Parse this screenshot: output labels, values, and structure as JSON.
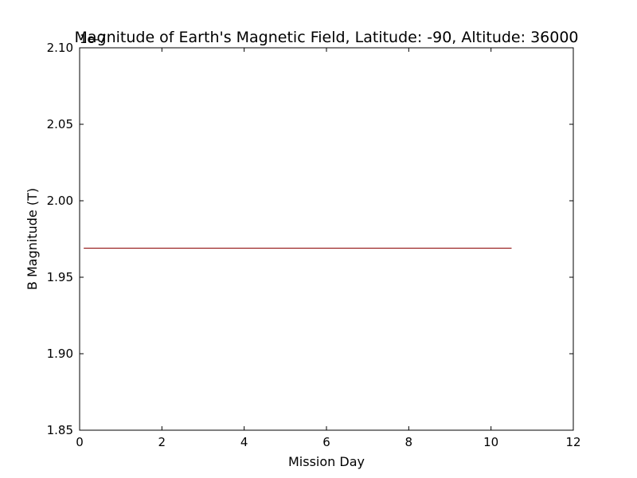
{
  "chart_data": {
    "type": "line",
    "title": "Magnitude of Earth's Magnetic Field, Latitude: -90, Altitude: 36000",
    "xlabel": "Mission Day",
    "ylabel": "B Magnitude (T)",
    "y_offset_label": "1e-7",
    "xlim": [
      0,
      12
    ],
    "ylim": [
      1.85,
      2.1
    ],
    "x_ticks": [
      0,
      2,
      4,
      6,
      8,
      10,
      12
    ],
    "x_tick_labels": [
      "0",
      "2",
      "4",
      "6",
      "8",
      "10",
      "12"
    ],
    "y_ticks": [
      1.85,
      1.9,
      1.95,
      2.0,
      2.05,
      2.1
    ],
    "y_tick_labels": [
      "1.85",
      "1.90",
      "1.95",
      "2.00",
      "2.05",
      "2.10"
    ],
    "grid": false,
    "series": [
      {
        "color": "#8b0000",
        "x": [
          0.1,
          10.5
        ],
        "y": [
          1.969,
          1.969
        ]
      }
    ]
  }
}
